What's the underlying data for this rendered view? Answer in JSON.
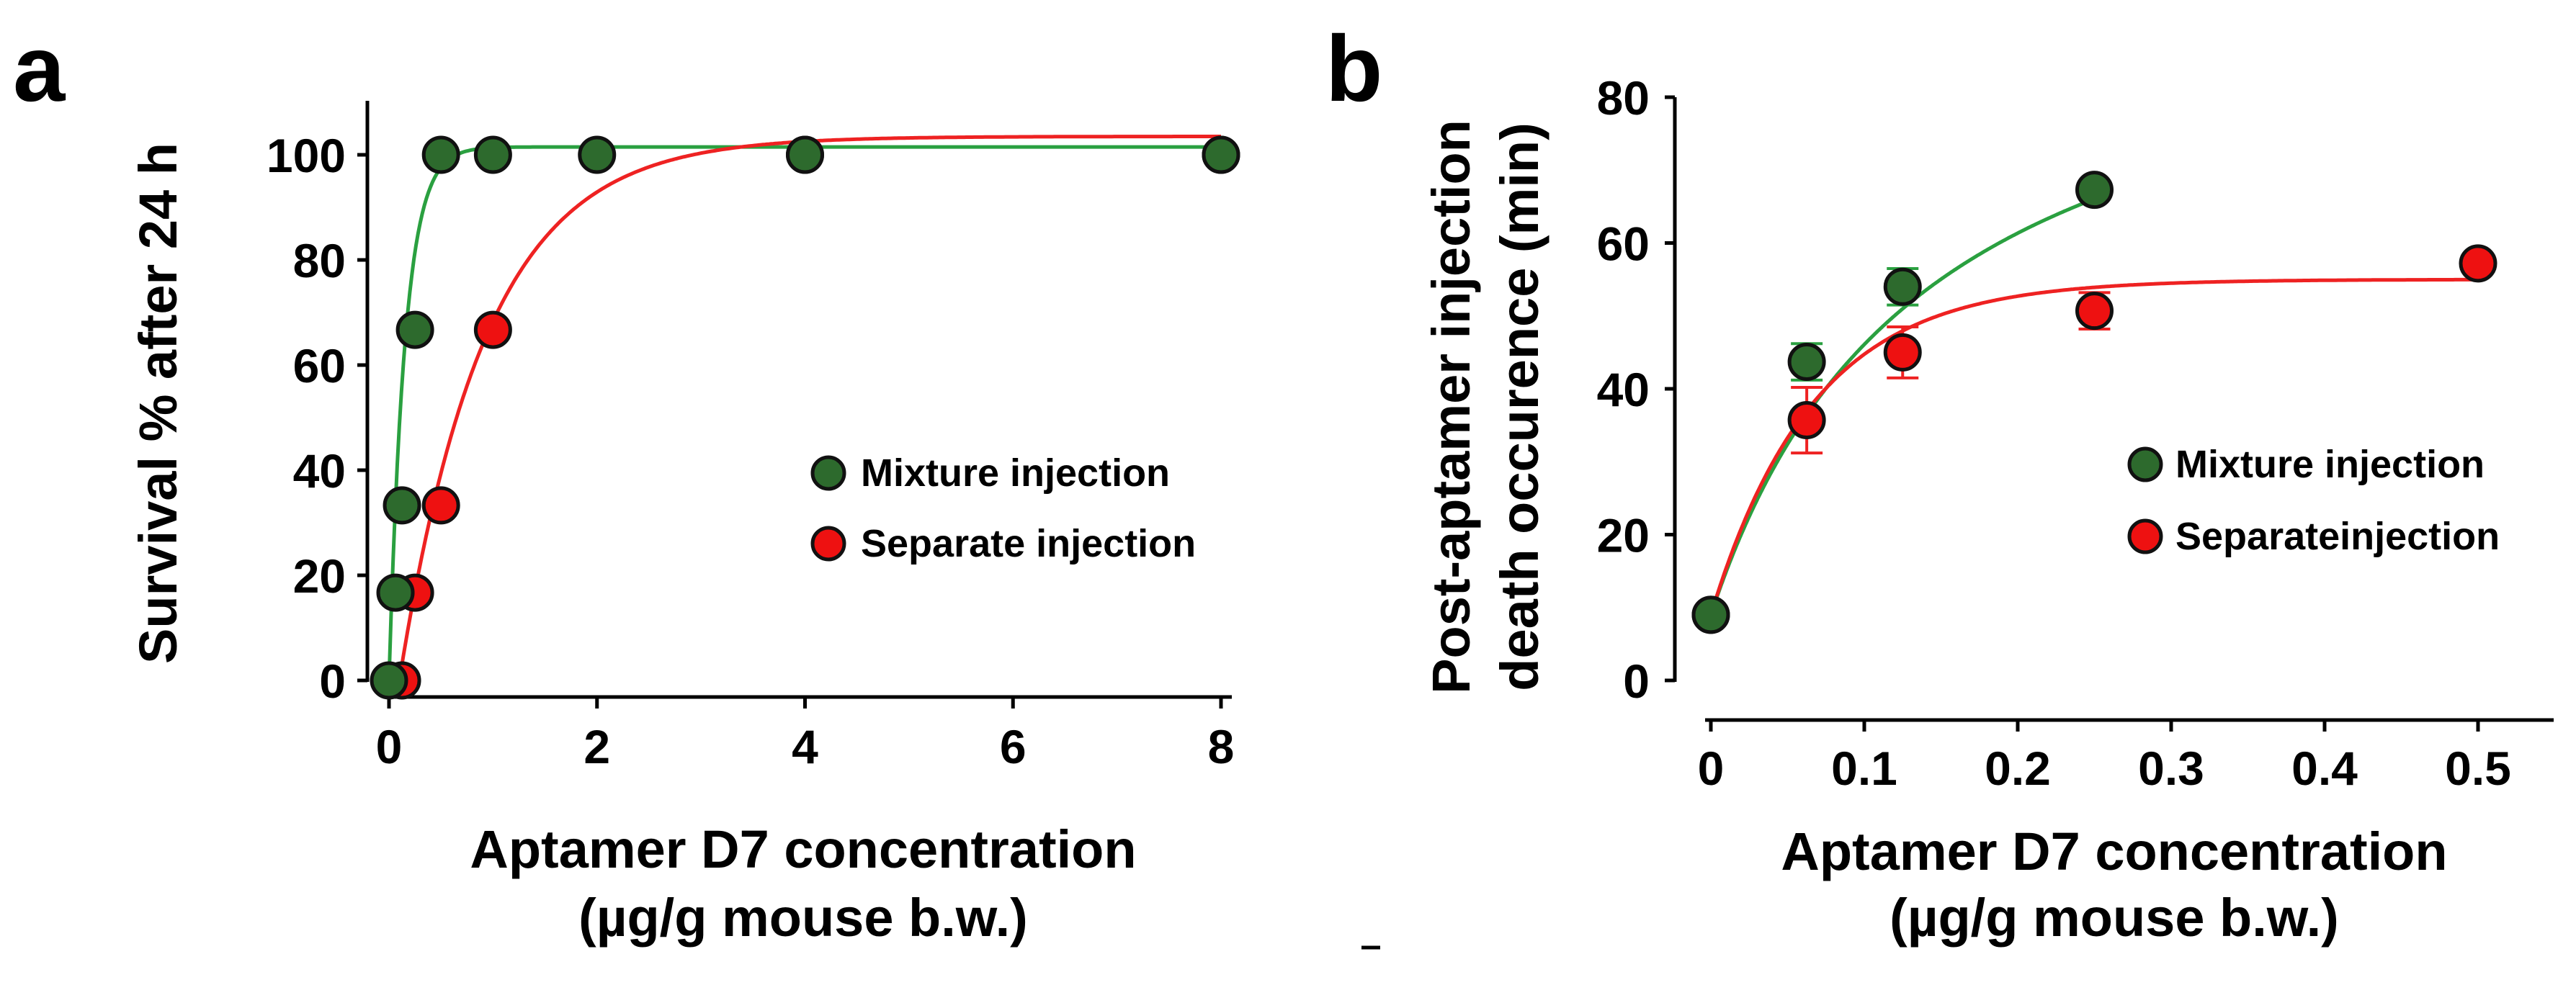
{
  "chart_data": [
    {
      "panel": "a",
      "type": "scatter",
      "xlabel": [
        "Aptamer D7 concentration",
        "(µg/g mouse b.w.)"
      ],
      "ylabel": "Survival % after 24 h",
      "xlim": [
        0,
        8
      ],
      "ylim": [
        0,
        110
      ],
      "xticks": [
        0,
        2,
        4,
        6,
        8
      ],
      "xtick_labels": [
        "0",
        "2",
        "4",
        "6",
        "8"
      ],
      "yticks": [
        0,
        20,
        40,
        60,
        80,
        100
      ],
      "ytick_labels": [
        "0",
        "20",
        "40",
        "60",
        "80",
        "100"
      ],
      "legend_position": "center-right",
      "series": [
        {
          "name": "Mixture injection",
          "color": "#2d6a2d",
          "curve_color": "#2aa040",
          "points": [
            [
              0,
              0
            ],
            [
              0.0625,
              16.7
            ],
            [
              0.125,
              33.3
            ],
            [
              0.25,
              66.7
            ],
            [
              0.5,
              100
            ],
            [
              1,
              100
            ],
            [
              2,
              100
            ],
            [
              4,
              100
            ],
            [
              8,
              100
            ]
          ],
          "fit": {
            "model": "exp_rise",
            "ymax": 101.5,
            "k": 6.5
          }
        },
        {
          "name": "Separate injection",
          "color": "#ee1111",
          "curve_color": "#ee2222",
          "points": [
            [
              0.125,
              0
            ],
            [
              0.25,
              16.7
            ],
            [
              0.5,
              33.3
            ],
            [
              1,
              66.7
            ],
            [
              4,
              100
            ],
            [
              8,
              100
            ]
          ],
          "fit": {
            "model": "exp_rise",
            "ymax": 103.5,
            "k": 1.2,
            "x0": 0.1
          }
        }
      ]
    },
    {
      "panel": "b",
      "type": "scatter",
      "xlabel": [
        "Aptamer D7 concentration",
        "(µg/g mouse b.w.)"
      ],
      "ylabel": [
        "Post-aptamer injection",
        "death occurence (min)"
      ],
      "xlim": [
        0,
        0.55
      ],
      "ylim": [
        0,
        80
      ],
      "xticks": [
        0,
        0.1,
        0.2,
        0.3,
        0.4,
        0.5
      ],
      "xtick_labels": [
        "0",
        "0.1",
        "0.2",
        "0.3",
        "0.4",
        "0.5"
      ],
      "yticks": [
        0,
        20,
        40,
        60,
        80
      ],
      "ytick_labels": [
        "0",
        "20",
        "40",
        "60",
        "80"
      ],
      "legend_position": "center-right",
      "series": [
        {
          "name": "Mixture injection",
          "color": "#2d6a2d",
          "curve_color": "#2aa040",
          "points": [
            [
              0,
              9
            ],
            [
              0.0625,
              43.7
            ],
            [
              0.125,
              54
            ],
            [
              0.25,
              67.3
            ]
          ],
          "errors": [
            0,
            2.5,
            2.5,
            0
          ],
          "fit": {
            "model": "hyperbolic",
            "y0": 9,
            "a": 89,
            "b": 0.14,
            "xmax": 0.25
          }
        },
        {
          "name": "Separateinjection",
          "color": "#ee1111",
          "curve_color": "#ee2222",
          "points": [
            [
              0,
              9
            ],
            [
              0.0625,
              35.7
            ],
            [
              0.125,
              45
            ],
            [
              0.25,
              50.7
            ],
            [
              0.5,
              57.2
            ]
          ],
          "errors": [
            0,
            4.5,
            3.5,
            2.5,
            0
          ],
          "fit": {
            "model": "exp_rise_offset",
            "y0": 9,
            "a": 46,
            "k": 15,
            "xmax": 0.5
          }
        }
      ]
    }
  ]
}
